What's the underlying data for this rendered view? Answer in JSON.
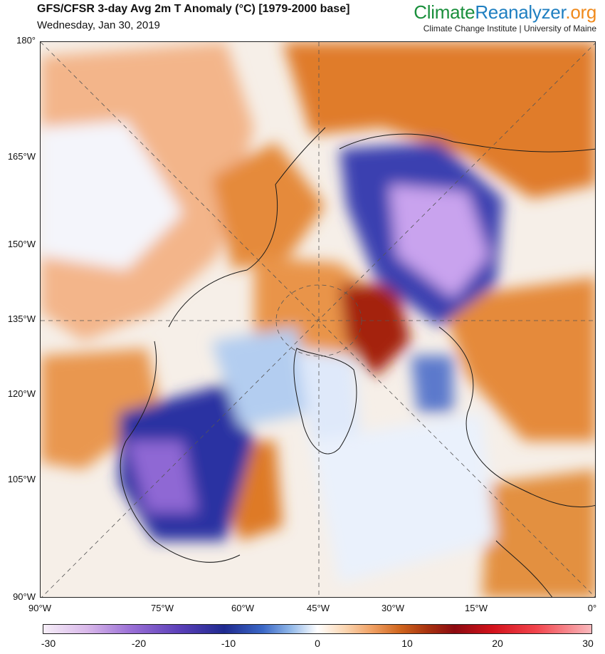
{
  "header": {
    "title": "GFS/CFSR 3-day Avg 2m T Anomaly (°C) [1979-2000 base]",
    "date": "Wednesday, Jan 30, 2019"
  },
  "brand": {
    "part1": "Climate",
    "part2": "Reanalyzer",
    "part3": ".org",
    "institution": "Climate Change Institute | University of Maine"
  },
  "map": {
    "y_axis_labels": [
      "180°",
      "165°W",
      "150°W",
      "135°W",
      "120°W",
      "105°W",
      "90°W"
    ],
    "x_axis_labels": [
      "90°W",
      "75°W",
      "60°W",
      "45°W",
      "30°W",
      "15°W",
      "0°"
    ]
  },
  "colorbar": {
    "unit": "°C",
    "ticks": [
      "-30",
      "-20",
      "-10",
      "0",
      "10",
      "20",
      "30"
    ],
    "min": -30,
    "max": 30
  },
  "colors": {
    "cold_extreme": "#e9d4f3",
    "cold": "#2a2f9c",
    "neutral": "#ffffff",
    "warm": "#d86e22",
    "warm_extreme": "#9a0d12"
  }
}
